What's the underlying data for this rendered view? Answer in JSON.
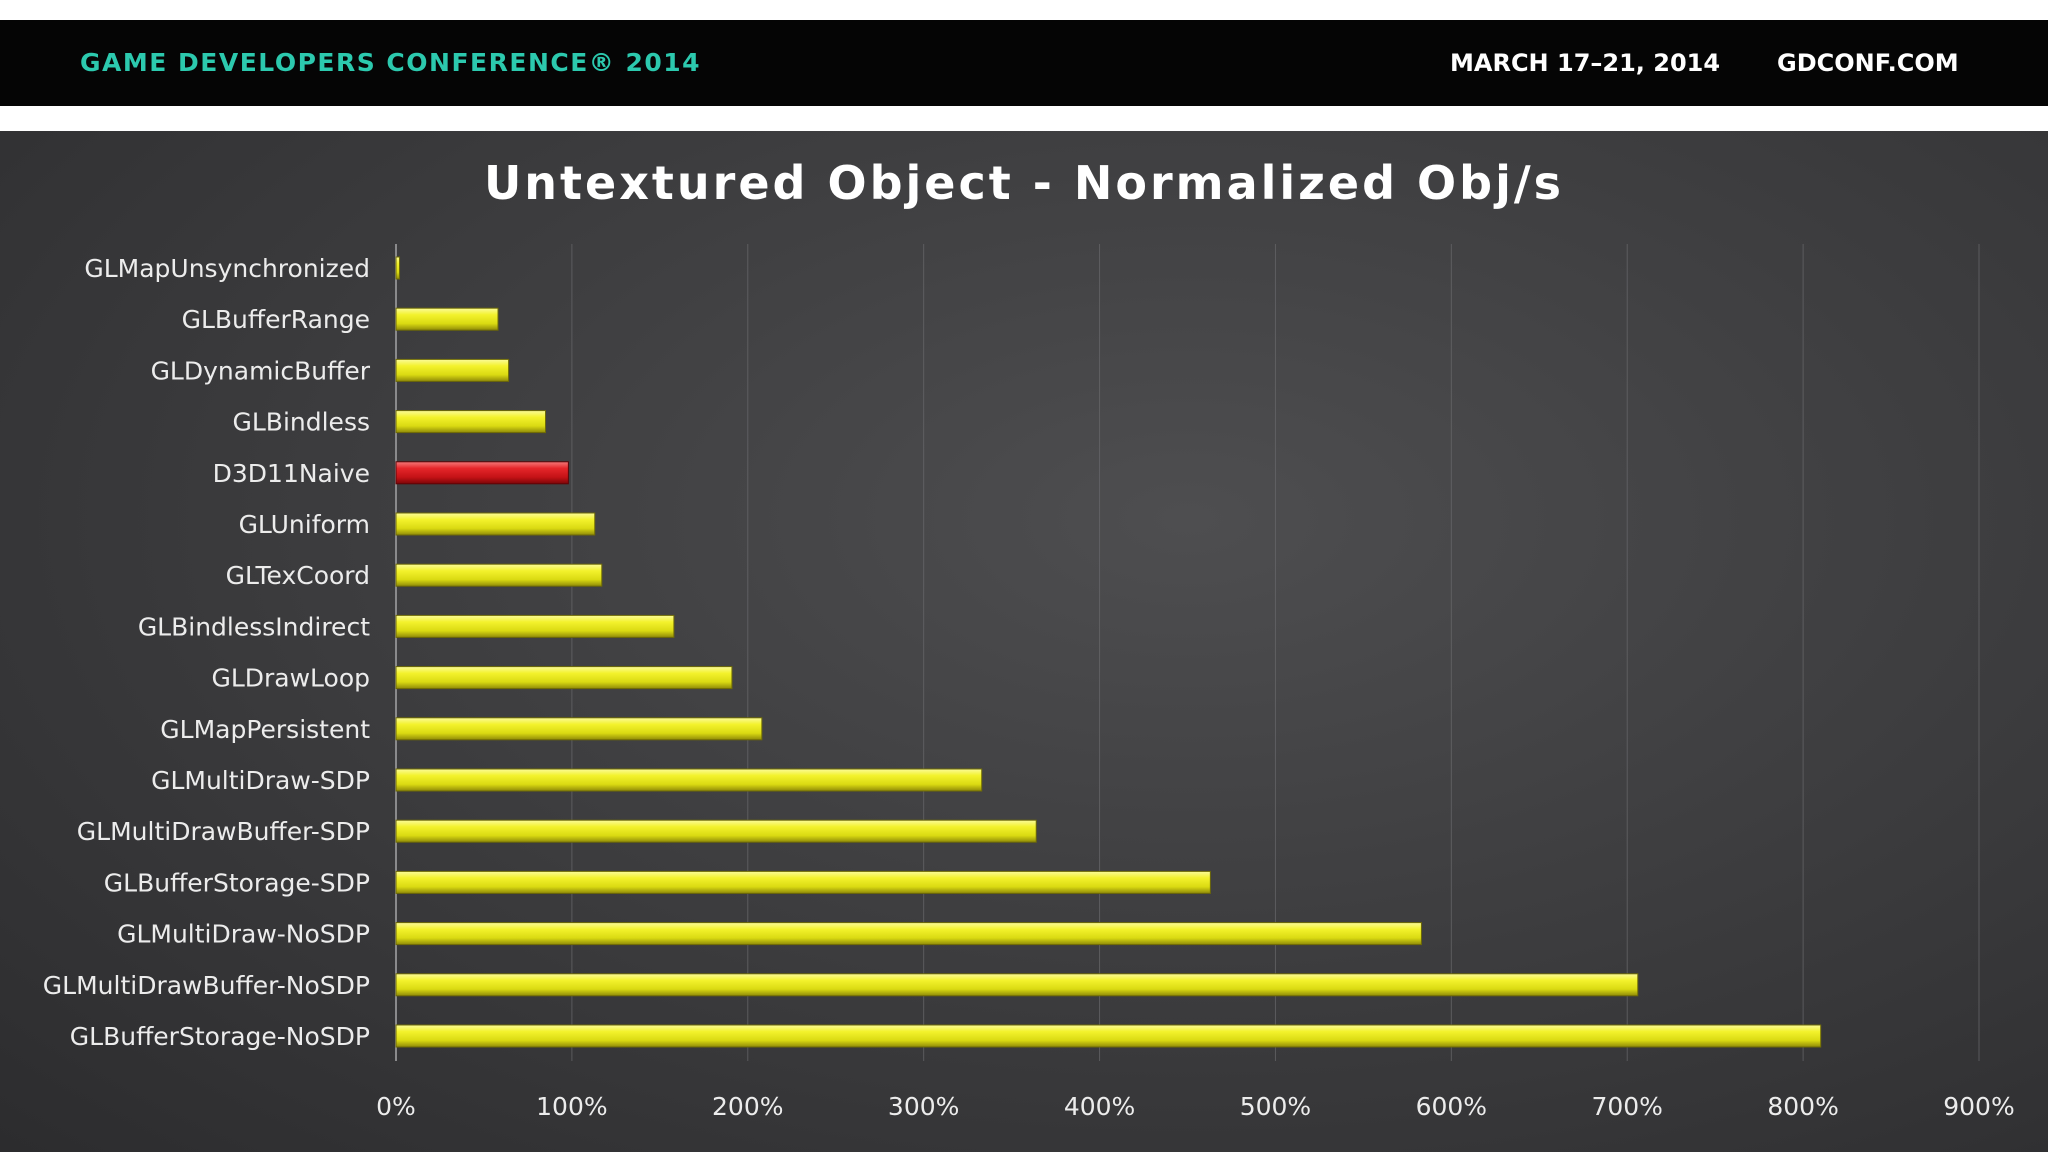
{
  "banner": {
    "conference": "GAME DEVELOPERS CONFERENCE® 2014",
    "dates": "MARCH 17–21, 2014",
    "url": "GDCONF.COM",
    "accent_color": "#2cc9ae"
  },
  "chart_data": {
    "type": "bar",
    "orientation": "horizontal",
    "title": "Untextured Object - Normalized Obj/s",
    "categories": [
      "GLMapUnsynchronized",
      "GLBufferRange",
      "GLDynamicBuffer",
      "GLBindless",
      "D3D11Naive",
      "GLUniform",
      "GLTexCoord",
      "GLBindlessIndirect",
      "GLDrawLoop",
      "GLMapPersistent",
      "GLMultiDraw-SDP",
      "GLMultiDrawBuffer-SDP",
      "GLBufferStorage-SDP",
      "GLMultiDraw-NoSDP",
      "GLMultiDrawBuffer-NoSDP",
      "GLBufferStorage-NoSDP"
    ],
    "values": [
      2,
      58,
      64,
      85,
      98,
      113,
      117,
      158,
      191,
      208,
      333,
      364,
      463,
      583,
      706,
      810
    ],
    "xlim": [
      0,
      900
    ],
    "x_ticks": [
      "0%",
      "100%",
      "200%",
      "300%",
      "400%",
      "500%",
      "600%",
      "700%",
      "800%",
      "900%"
    ],
    "x_tick_values": [
      0,
      100,
      200,
      300,
      400,
      500,
      600,
      700,
      800,
      900
    ],
    "unit": "%",
    "grid": "vertical",
    "colors": {
      "default_bar": "#e8e81a",
      "highlight_bar": "#d4161a"
    },
    "highlight": "D3D11Naive",
    "xlabel": "",
    "ylabel": ""
  }
}
